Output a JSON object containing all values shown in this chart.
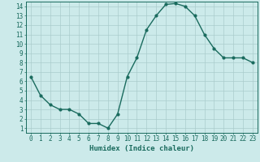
{
  "x": [
    0,
    1,
    2,
    3,
    4,
    5,
    6,
    7,
    8,
    9,
    10,
    11,
    12,
    13,
    14,
    15,
    16,
    17,
    18,
    19,
    20,
    21,
    22,
    23
  ],
  "y": [
    6.5,
    4.5,
    3.5,
    3.0,
    3.0,
    2.5,
    1.5,
    1.5,
    1.0,
    2.5,
    6.5,
    8.5,
    11.5,
    13.0,
    14.2,
    14.3,
    14.0,
    13.0,
    11.0,
    9.5,
    8.5,
    8.5,
    8.5,
    8.0
  ],
  "line_color": "#1a6b5e",
  "marker": "o",
  "marker_size": 2,
  "bg_color": "#cceaea",
  "grid_color": "#aacccc",
  "xlabel": "Humidex (Indice chaleur)",
  "xlim": [
    -0.5,
    23.5
  ],
  "ylim": [
    0.5,
    14.5
  ],
  "xticks": [
    0,
    1,
    2,
    3,
    4,
    5,
    6,
    7,
    8,
    9,
    10,
    11,
    12,
    13,
    14,
    15,
    16,
    17,
    18,
    19,
    20,
    21,
    22,
    23
  ],
  "yticks": [
    1,
    2,
    3,
    4,
    5,
    6,
    7,
    8,
    9,
    10,
    11,
    12,
    13,
    14
  ],
  "tick_fontsize": 5.5,
  "xlabel_fontsize": 6.5
}
